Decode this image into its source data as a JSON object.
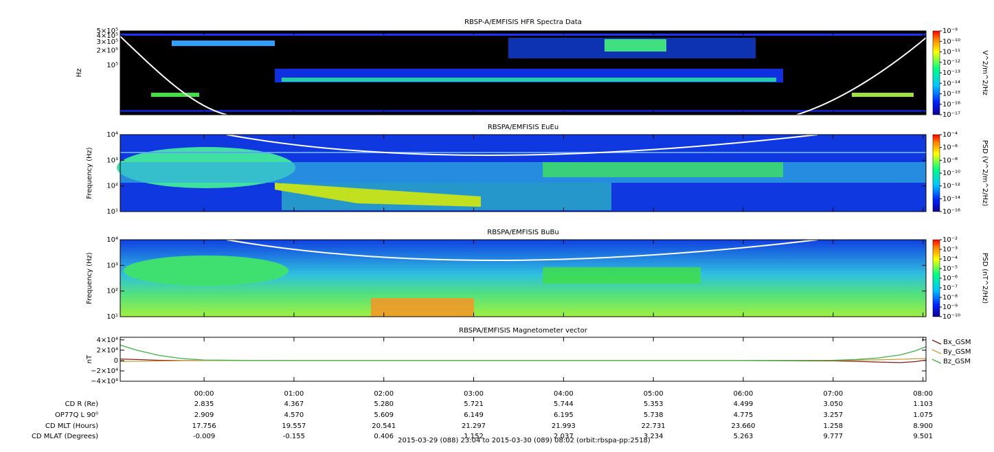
{
  "chart_data": [
    {
      "type": "spectrogram",
      "title": "RBSP-A/EMFISIS  HFR Spectra Data",
      "ylabel": "Hz",
      "log_y": true,
      "ylim": [
        10000,
        500000
      ],
      "yticks": [
        {
          "value": 500000,
          "label": "5×10⁵"
        },
        {
          "value": 400000,
          "label": "4×10⁵"
        },
        {
          "value": 300000,
          "label": "3×10⁵"
        },
        {
          "value": 200000,
          "label": "2×10⁵"
        },
        {
          "value": 100000,
          "label": "10⁵"
        }
      ],
      "colorbar_label": "V^2/m^2/Hz",
      "clim": [
        1e-17,
        1e-09
      ],
      "cticks": [
        {
          "value": 1e-09,
          "label": "10⁻⁹"
        },
        {
          "value": 1e-10,
          "label": "10⁻¹⁰"
        },
        {
          "value": 1e-11,
          "label": "10⁻¹¹"
        },
        {
          "value": 1e-12,
          "label": "10⁻¹²"
        },
        {
          "value": 1e-13,
          "label": "10⁻¹³"
        },
        {
          "value": 1e-14,
          "label": "10⁻¹⁴"
        },
        {
          "value": 1e-15,
          "label": "10⁻¹⁵"
        },
        {
          "value": 1e-16,
          "label": "10⁻¹⁶"
        },
        {
          "value": 1e-17,
          "label": "10⁻¹⁷"
        }
      ]
    },
    {
      "type": "spectrogram",
      "title": "RBSPA/EMFISIS  EuEu",
      "ylabel": "Frequency (Hz)",
      "log_y": true,
      "ylim": [
        10,
        10000
      ],
      "yticks": [
        {
          "value": 10000,
          "label": "10⁴"
        },
        {
          "value": 1000,
          "label": "10³"
        },
        {
          "value": 100,
          "label": "10²"
        },
        {
          "value": 10,
          "label": "10¹"
        }
      ],
      "colorbar_label": "PSD (V^2/m^2/Hz)",
      "clim": [
        1e-16,
        0.0001
      ],
      "cticks": [
        {
          "value": 0.0001,
          "label": "10⁻⁴"
        },
        {
          "value": 1e-06,
          "label": "10⁻⁶"
        },
        {
          "value": 1e-08,
          "label": "10⁻⁸"
        },
        {
          "value": 1e-10,
          "label": "10⁻¹⁰"
        },
        {
          "value": 1e-12,
          "label": "10⁻¹²"
        },
        {
          "value": 1e-14,
          "label": "10⁻¹⁴"
        },
        {
          "value": 1e-16,
          "label": "10⁻¹⁶"
        }
      ]
    },
    {
      "type": "spectrogram",
      "title": "RBSPA/EMFISIS  BuBu",
      "ylabel": "Frequency (Hz)",
      "log_y": true,
      "ylim": [
        10,
        10000
      ],
      "yticks": [
        {
          "value": 10000,
          "label": "10⁴"
        },
        {
          "value": 1000,
          "label": "10³"
        },
        {
          "value": 100,
          "label": "10²"
        },
        {
          "value": 10,
          "label": "10¹"
        }
      ],
      "colorbar_label": "PSD (nT^2/Hz)",
      "clim": [
        1e-10,
        0.01
      ],
      "cticks": [
        {
          "value": 0.01,
          "label": "10⁻²"
        },
        {
          "value": 0.001,
          "label": "10⁻³"
        },
        {
          "value": 0.0001,
          "label": "10⁻⁴"
        },
        {
          "value": 1e-05,
          "label": "10⁻⁵"
        },
        {
          "value": 1e-06,
          "label": "10⁻⁶"
        },
        {
          "value": 1e-07,
          "label": "10⁻⁷"
        },
        {
          "value": 1e-08,
          "label": "10⁻⁸"
        },
        {
          "value": 1e-09,
          "label": "10⁻⁹"
        },
        {
          "value": 1e-10,
          "label": "10⁻¹⁰"
        }
      ]
    },
    {
      "type": "line",
      "title": "RBSPA/EMFISIS  Magnetometer vector",
      "ylabel": "nT",
      "log_y": false,
      "xlim": [
        "2015-03-29 23:04",
        "2015-03-30 08:02"
      ],
      "xticks": [
        {
          "value": "2015-03-30 00:00",
          "label": "00:00"
        },
        {
          "value": "2015-03-30 01:00",
          "label": "01:00"
        },
        {
          "value": "2015-03-30 02:00",
          "label": "02:00"
        },
        {
          "value": "2015-03-30 03:00",
          "label": "03:00"
        },
        {
          "value": "2015-03-30 04:00",
          "label": "04:00"
        },
        {
          "value": "2015-03-30 05:00",
          "label": "05:00"
        },
        {
          "value": "2015-03-30 06:00",
          "label": "06:00"
        },
        {
          "value": "2015-03-30 07:00",
          "label": "07:00"
        },
        {
          "value": "2015-03-30 08:00",
          "label": "08:00"
        }
      ],
      "ylim": [
        -40000,
        45000
      ],
      "yticks": [
        {
          "value": 40000,
          "label": "4×10⁴"
        },
        {
          "value": 20000,
          "label": "2×10⁴"
        },
        0,
        {
          "value": -20000,
          "label": "−2×10⁴"
        },
        {
          "value": -40000,
          "label": "−4×10⁴"
        }
      ],
      "x": [
        "2015-03-29 23:04",
        "2015-03-29 23:15",
        "2015-03-29 23:30",
        "2015-03-29 23:45",
        "2015-03-30 00:00",
        "2015-03-30 00:30",
        "2015-03-30 01:00",
        "2015-03-30 02:00",
        "2015-03-30 03:00",
        "2015-03-30 04:00",
        "2015-03-30 05:00",
        "2015-03-30 06:00",
        "2015-03-30 07:00",
        "2015-03-30 07:15",
        "2015-03-30 07:30",
        "2015-03-30 07:45",
        "2015-03-30 07:55",
        "2015-03-30 08:02"
      ],
      "series": [
        {
          "name": "Bx_GSM",
          "color": "#8b1a1a",
          "values": [
            3000,
            2000,
            500,
            0,
            0,
            0,
            0,
            0,
            0,
            0,
            0,
            0,
            -500,
            -1500,
            -3000,
            -4000,
            -2000,
            1000
          ]
        },
        {
          "name": "By_GSM",
          "color": "#c8a040",
          "values": [
            -2000,
            -1500,
            -800,
            -300,
            0,
            0,
            0,
            0,
            0,
            0,
            0,
            0,
            300,
            800,
            1500,
            2500,
            3500,
            4000
          ]
        },
        {
          "name": "Bz_GSM",
          "color": "#3cb043",
          "values": [
            30000,
            20000,
            10000,
            4000,
            1000,
            200,
            0,
            0,
            0,
            0,
            0,
            0,
            500,
            2000,
            5000,
            11000,
            19000,
            27000
          ]
        }
      ]
    }
  ],
  "ephemeris": {
    "labels": [
      "CD R (Re)",
      "OP77Q L 90⁰",
      "CD MLT (Hours)",
      "CD MLAT (Degrees)"
    ],
    "rows": [
      [
        "2.835",
        "4.367",
        "5.280",
        "5.721",
        "5.744",
        "5.353",
        "4.499",
        "3.050",
        "1.103"
      ],
      [
        "2.909",
        "4.570",
        "5.609",
        "6.149",
        "6.195",
        "5.738",
        "4.775",
        "3.257",
        "1.075"
      ],
      [
        "17.756",
        "19.557",
        "20.541",
        "21.297",
        "21.993",
        "22.731",
        "23.660",
        "1.258",
        "8.900"
      ],
      [
        "-0.009",
        "-0.155",
        "0.406",
        "1.152",
        "2.037",
        "3.234",
        "5.263",
        "9.777",
        "9.501"
      ]
    ]
  },
  "footer": "2015-03-29 (088) 23:04 to 2015-03-30 (089) 08:02 (orbit:rbspa-pp:2518)"
}
